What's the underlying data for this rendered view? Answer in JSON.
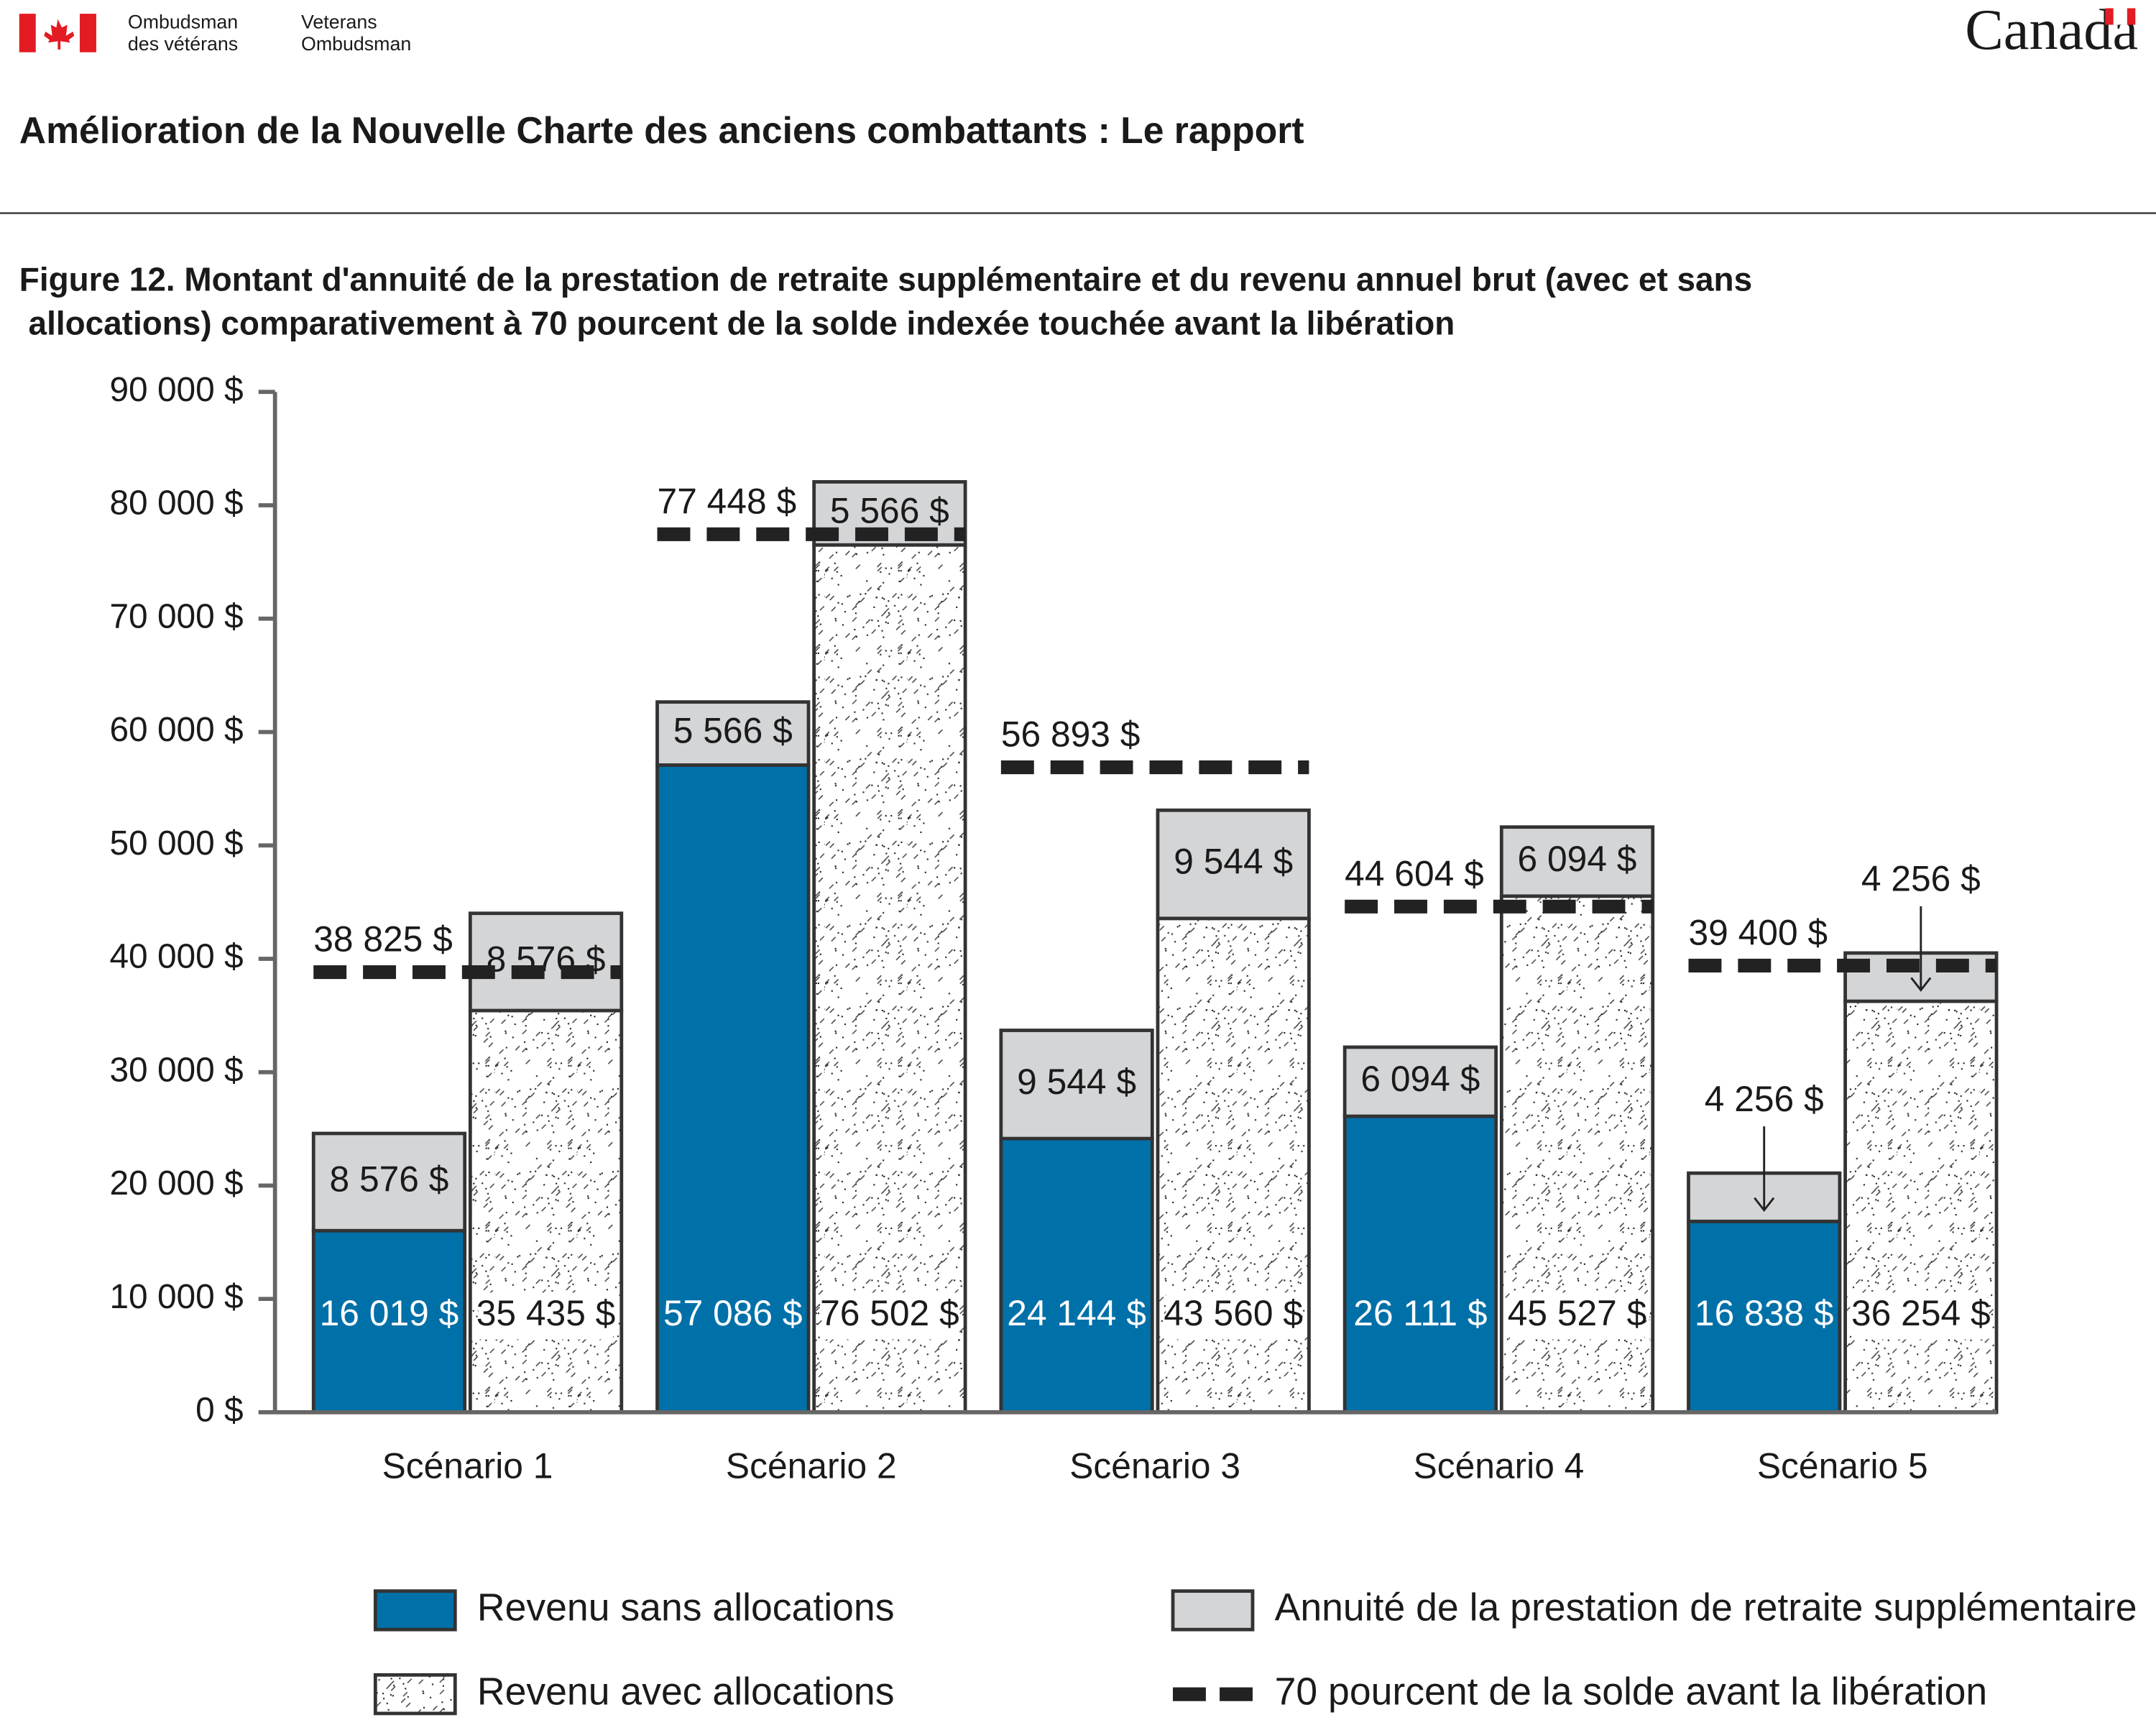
{
  "header": {
    "org_fr": [
      "Ombudsman",
      "des vétérans"
    ],
    "org_en": [
      "Veterans",
      "Ombudsman"
    ],
    "wordmark": "Canada",
    "title": "Amélioration de la Nouvelle Charte des anciens combattants : Le rapport"
  },
  "chart_data": {
    "type": "bar",
    "title": [
      "Figure 12. Montant d'annuité de la prestation de retraite supplémentaire et du revenu annuel brut (avec et sans",
      " allocations) comparativement à 70 pourcent de la solde indexée touchée avant la libération"
    ],
    "categories": [
      "Scénario 1",
      "Scénario 2",
      "Scénario 3",
      "Scénario 4",
      "Scénario 5"
    ],
    "series": [
      {
        "name": "Revenu sans allocations",
        "color": "#0070a8",
        "values": [
          16019,
          57086,
          24144,
          26111,
          16838
        ],
        "value_labels": [
          "16 019 $",
          "57 086 $",
          "24 144 $",
          "26 111 $",
          "16 838 $"
        ]
      },
      {
        "name": "Revenu avec allocations",
        "color": "#ffffff",
        "pattern": true,
        "values": [
          35435,
          76502,
          43560,
          45527,
          36254
        ],
        "value_labels": [
          "35 435 $",
          "76 502 $",
          "43 560 $",
          "45 527 $",
          "36 254 $"
        ]
      },
      {
        "name": "Annuité de la prestation de retraite supplémentaire",
        "color": "#d4d5d7",
        "values": [
          8576,
          5566,
          9544,
          6094,
          4256
        ],
        "value_labels": [
          "8 576 $",
          "5 566 $",
          "9 544 $",
          "6 094 $",
          "4 256 $"
        ]
      },
      {
        "name": "70 pourcent de la solde avant la libération",
        "color": "#222222",
        "dashed": true,
        "values": [
          38825,
          77448,
          56893,
          44604,
          39400
        ],
        "value_labels": [
          "38 825 $",
          "77 448 $",
          "56 893 $",
          "44 604 $",
          "39 400 $"
        ]
      }
    ],
    "ylim": [
      0,
      90000
    ],
    "yticks": [
      {
        "value": 0,
        "label": "0 $"
      },
      {
        "value": 10000,
        "label": "10 000 $"
      },
      {
        "value": 20000,
        "label": "20 000 $"
      },
      {
        "value": 30000,
        "label": "30 000 $"
      },
      {
        "value": 40000,
        "label": "40 000 $"
      },
      {
        "value": 50000,
        "label": "50 000 $"
      },
      {
        "value": 60000,
        "label": "60 000 $"
      },
      {
        "value": 70000,
        "label": "70 000 $"
      },
      {
        "value": 80000,
        "label": "80 000 $"
      },
      {
        "value": 90000,
        "label": "90 000 $"
      }
    ]
  }
}
